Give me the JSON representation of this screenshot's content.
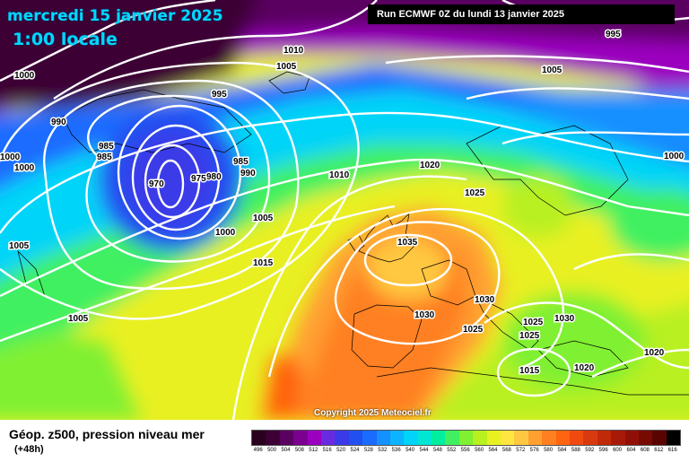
{
  "header": {
    "date_title": "mercredi 15 janvier 2025",
    "local_time": "1:00 locale",
    "run_info": "Run ECMWF 0Z du lundi 13 janvier 2025"
  },
  "footer": {
    "legend_title": "Géop. z500, pression niveau mer",
    "lead_time": "(+48h)",
    "copyright": "Copyright 2025 Meteociel.fr"
  },
  "scale": {
    "values": [
      496,
      500,
      504,
      508,
      512,
      516,
      520,
      524,
      528,
      532,
      536,
      540,
      544,
      548,
      552,
      556,
      560,
      564,
      568,
      572,
      576,
      580,
      584,
      588,
      592,
      596,
      600,
      604,
      608,
      612,
      616
    ],
    "colors": [
      "#2a001f",
      "#3c0035",
      "#5a0060",
      "#7a0090",
      "#9b00c0",
      "#6a2ae0",
      "#3a3ae8",
      "#2250f0",
      "#1a6cff",
      "#1490ff",
      "#0cb4ff",
      "#00d4f8",
      "#00e6d4",
      "#00eea0",
      "#40f060",
      "#80f030",
      "#b8f020",
      "#e8f020",
      "#ffe640",
      "#ffc840",
      "#ffa030",
      "#ff8020",
      "#ff6410",
      "#f04a10",
      "#d83a10",
      "#c02a08",
      "#a81a08",
      "#901008",
      "#780a04",
      "#5a0402",
      "#000000"
    ]
  },
  "colors": {
    "header_text": "#00d8ff",
    "run_box_bg": "#000000",
    "isobar": "#ffffff"
  },
  "isobar_labels": [
    "1010",
    "1005",
    "1000",
    "995",
    "990",
    "985",
    "985",
    "980",
    "975",
    "970",
    "985",
    "990",
    "1000",
    "1000",
    "1010",
    "1005",
    "1000",
    "1015",
    "1005",
    "1020",
    "1025",
    "1035",
    "1030",
    "1030",
    "1025",
    "1025",
    "1030",
    "1025",
    "1015",
    "1020",
    "1020",
    "995",
    "1005",
    "1000"
  ]
}
